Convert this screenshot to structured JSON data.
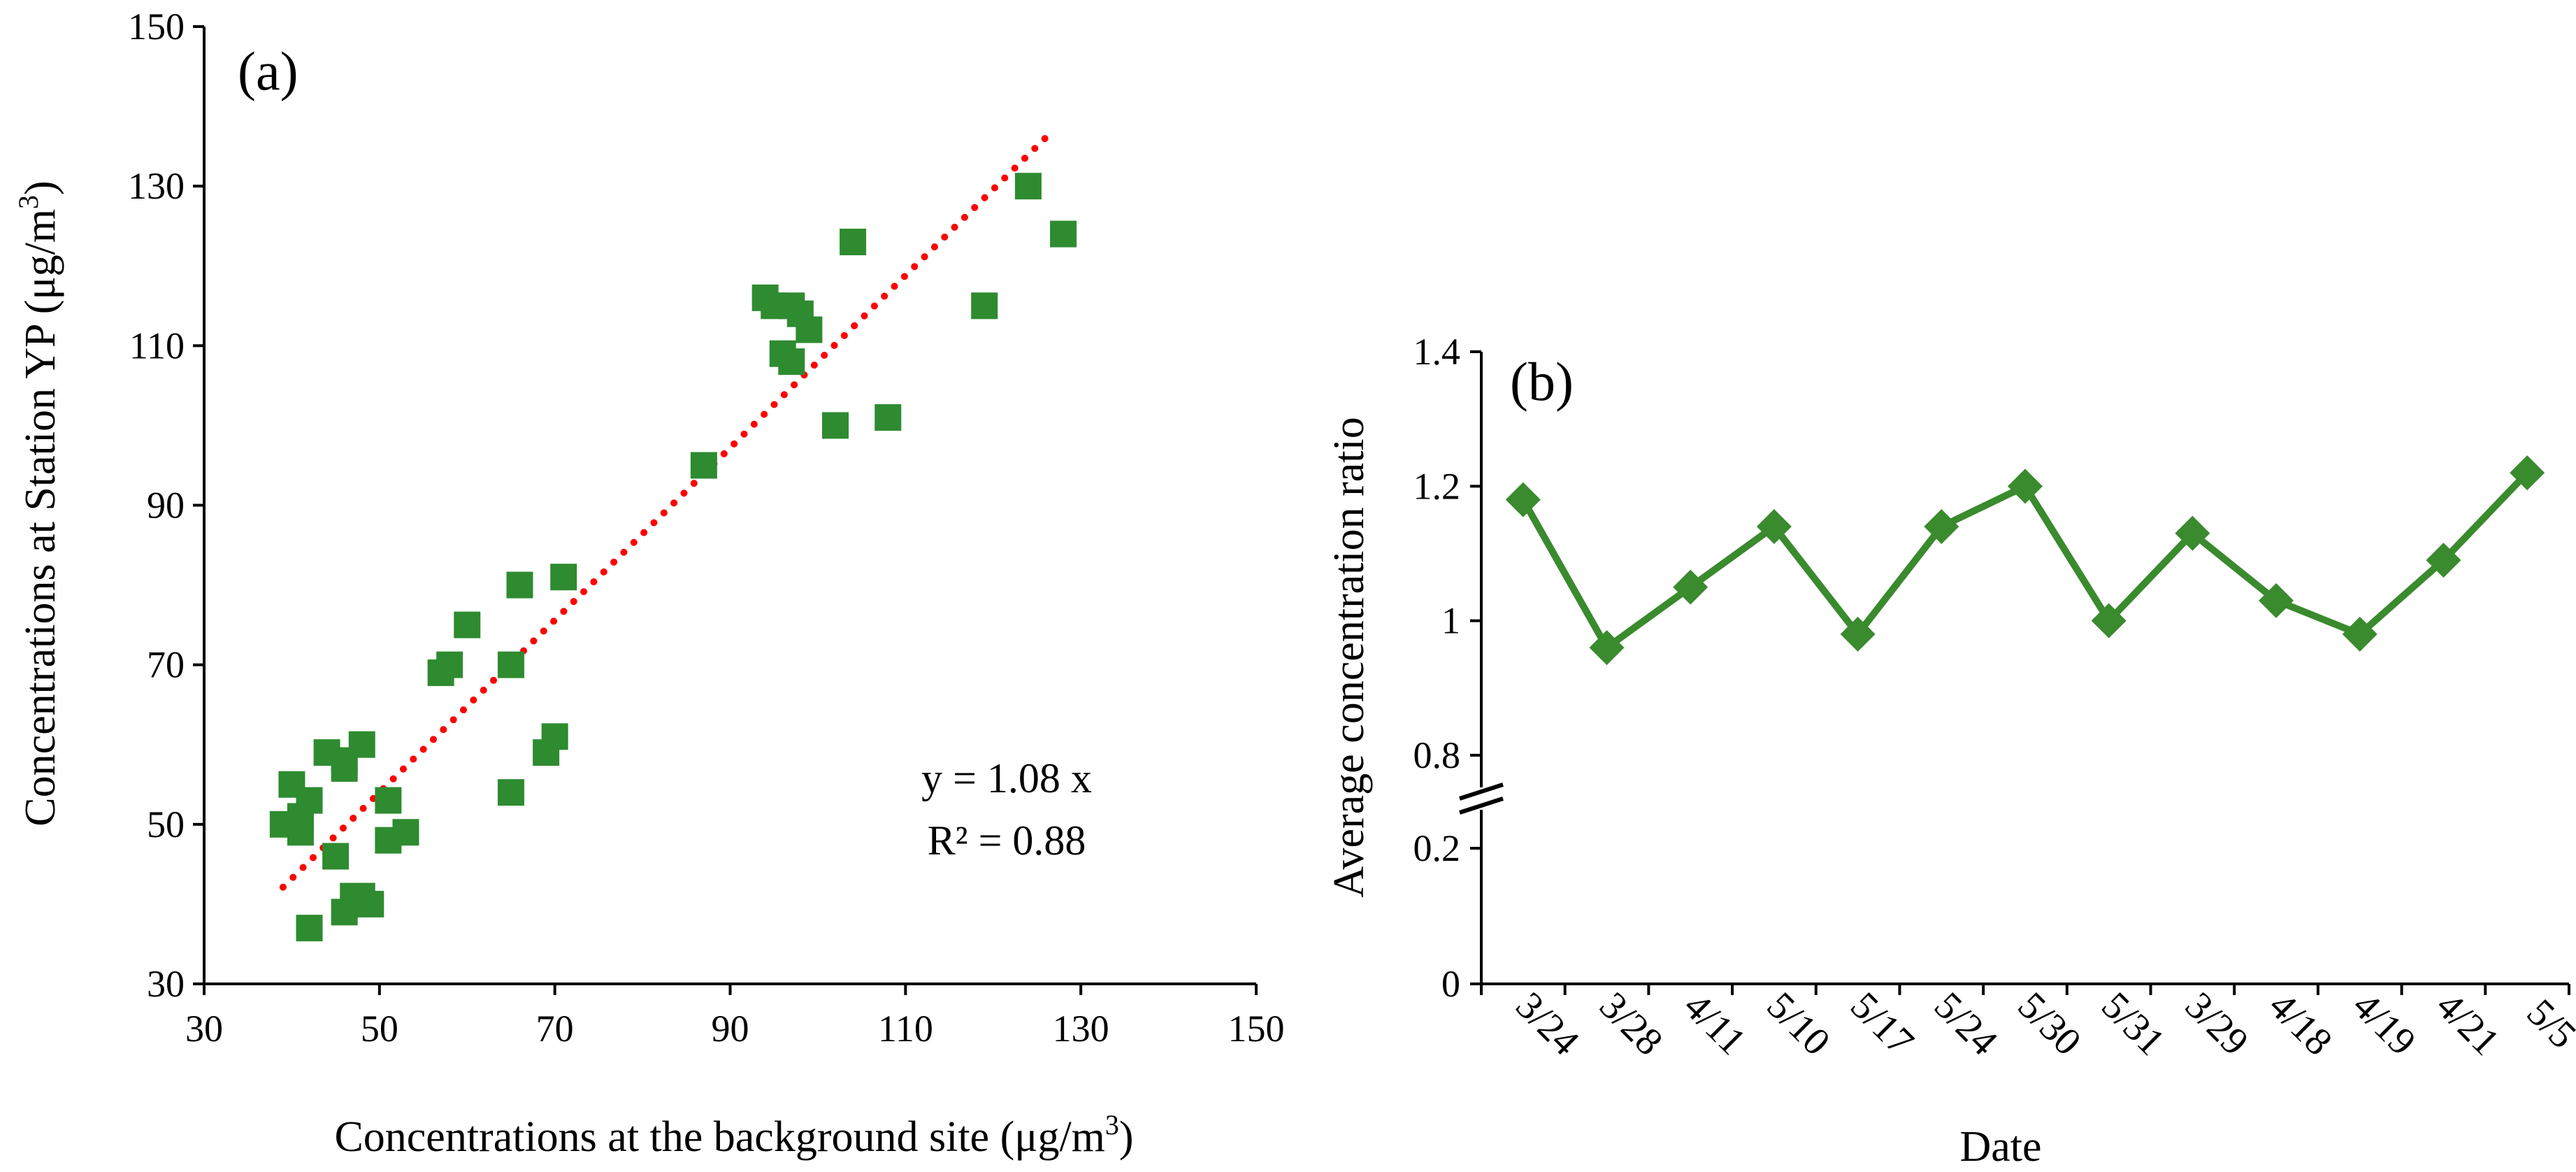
{
  "chart_data": [
    {
      "type": "scatter",
      "panel_label": "(a)",
      "xlabel": "Concentrations at the background site (μg/m",
      "xlabel_sup": "3",
      "xlabel_end": ")",
      "ylabel": "Concentrations at Station YP (μg/m",
      "ylabel_sup": "3",
      "ylabel_end": ")",
      "xlim": [
        30,
        150
      ],
      "ylim": [
        30,
        150
      ],
      "xticks": [
        30,
        50,
        70,
        90,
        110,
        130,
        150
      ],
      "yticks": [
        30,
        50,
        70,
        90,
        110,
        130,
        150
      ],
      "marker_color": "#2e8b30",
      "trendline": {
        "slope": 1.08,
        "x_range": [
          39,
          127
        ],
        "color": "#ff0000",
        "style": "dotted"
      },
      "equation": "y = 1.08 x",
      "r_squared": "R² = 0.88",
      "points": [
        [
          39,
          50
        ],
        [
          40,
          55
        ],
        [
          41,
          51
        ],
        [
          41,
          49
        ],
        [
          42,
          53
        ],
        [
          42,
          37
        ],
        [
          44,
          59
        ],
        [
          45,
          46
        ],
        [
          46,
          57
        ],
        [
          46,
          58
        ],
        [
          46,
          39
        ],
        [
          47,
          41
        ],
        [
          48,
          60
        ],
        [
          48,
          41
        ],
        [
          49,
          40
        ],
        [
          51,
          53
        ],
        [
          51,
          48
        ],
        [
          53,
          49
        ],
        [
          57,
          69
        ],
        [
          58,
          70
        ],
        [
          60,
          75
        ],
        [
          65,
          54
        ],
        [
          65,
          70
        ],
        [
          66,
          80
        ],
        [
          69,
          59
        ],
        [
          70,
          61
        ],
        [
          71,
          81
        ],
        [
          87,
          95
        ],
        [
          94,
          116
        ],
        [
          95,
          115
        ],
        [
          96,
          109
        ],
        [
          97,
          108
        ],
        [
          97,
          115
        ],
        [
          98,
          114
        ],
        [
          99,
          112
        ],
        [
          102,
          100
        ],
        [
          104,
          123
        ],
        [
          108,
          101
        ],
        [
          119,
          115
        ],
        [
          124,
          130
        ],
        [
          128,
          124
        ]
      ]
    },
    {
      "type": "line",
      "panel_label": "(b)",
      "xlabel": "Date",
      "ylabel": "Average concentration ratio",
      "categories": [
        "3/24",
        "3/28",
        "4/11",
        "5/10",
        "5/17",
        "5/24",
        "5/30",
        "5/31",
        "3/29",
        "4/18",
        "4/19",
        "4/21",
        "5/5"
      ],
      "values": [
        1.18,
        0.96,
        1.05,
        1.14,
        0.98,
        1.14,
        1.2,
        1.0,
        1.13,
        1.03,
        0.98,
        1.09,
        1.22
      ],
      "y_ticks_upper": [
        "0.8",
        "1",
        "1.2",
        "1.4"
      ],
      "y_ticks_lower": [
        "0",
        "0.2"
      ],
      "ylim_upper": [
        0.8,
        1.4
      ],
      "ylim_lower": [
        0,
        0.2
      ],
      "axis_break": true,
      "color": "#3a8a2e"
    }
  ]
}
